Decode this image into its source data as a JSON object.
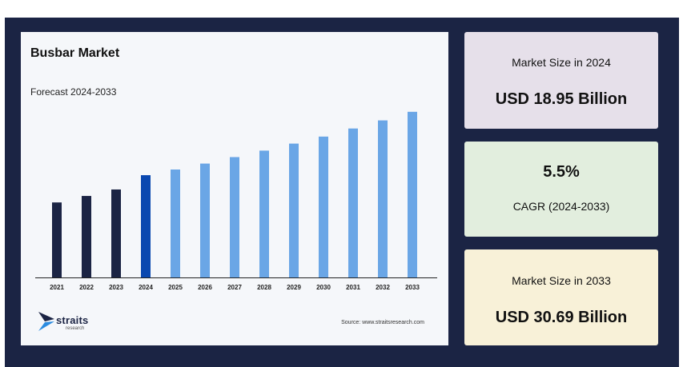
{
  "chart_data": {
    "type": "bar",
    "title": "Busbar Market",
    "subtitle": "Forecast 2024-2033",
    "categories": [
      "2021",
      "2022",
      "2023",
      "2024",
      "2025",
      "2026",
      "2027",
      "2028",
      "2029",
      "2030",
      "2031",
      "2032",
      "2033"
    ],
    "values": [
      13.9,
      15.1,
      16.3,
      18.95,
      20.0,
      21.1,
      22.3,
      23.5,
      24.8,
      26.1,
      27.6,
      29.1,
      30.69
    ],
    "bar_colors": [
      "#1b2444",
      "#1b2444",
      "#1b2444",
      "#0a48b0",
      "#6aa6e6",
      "#6aa6e6",
      "#6aa6e6",
      "#6aa6e6",
      "#6aa6e6",
      "#6aa6e6",
      "#6aa6e6",
      "#6aa6e6",
      "#6aa6e6"
    ],
    "xlabel": "",
    "ylabel": "",
    "grid": false,
    "legend": false
  },
  "branding": {
    "logo_word": "straits",
    "logo_sub": "research",
    "source": "Source: www.straitsresearch.com"
  },
  "stats": {
    "size_2024_label": "Market Size in 2024",
    "size_2024_value": "USD 18.95 Billion",
    "cagr_value": "5.5%",
    "cagr_label": "CAGR (2024-2033)",
    "size_2033_label": "Market Size in 2033",
    "size_2033_value": "USD 30.69 Billion"
  },
  "colors": {
    "frame": "#1b2444",
    "card_2024": "#e6e0ea",
    "card_cagr": "#e2eede",
    "card_2033": "#f8f1d8"
  }
}
